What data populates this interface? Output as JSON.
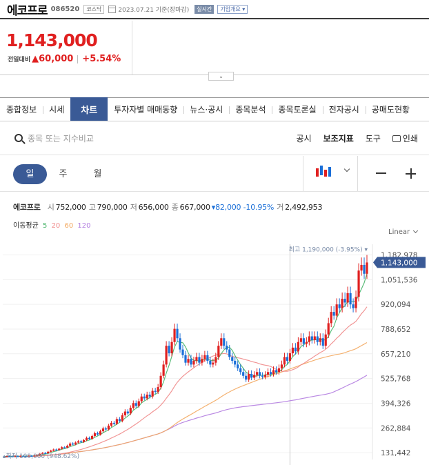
{
  "header": {
    "stock_name": "에코프로",
    "stock_code": "086520",
    "market": "코스닥",
    "date": "2023.07.21 기준(장마감)",
    "live_badge": "실시간",
    "overview_badge": "기업개요 ▾"
  },
  "price": {
    "current": "1,143,000",
    "change_label": "전일대비",
    "change_symbol": "▲",
    "change_amount": "60,000",
    "change_percent": "+5.54%"
  },
  "tabs": [
    {
      "label": "종합정보"
    },
    {
      "label": "시세"
    },
    {
      "label": "차트",
      "active": true
    },
    {
      "label": "투자자별 매매동향"
    },
    {
      "label": "뉴스·공시"
    },
    {
      "label": "종목분석"
    },
    {
      "label": "종목토론실"
    },
    {
      "label": "전자공시"
    },
    {
      "label": "공매도현황"
    }
  ],
  "toolbar": {
    "search_placeholder": "종목 또는 지수비교",
    "links": [
      "공시",
      "보조지표",
      "도구",
      "인쇄"
    ]
  },
  "periods": [
    "일",
    "주",
    "월"
  ],
  "ohlc": {
    "name": "에코프로",
    "open_label": "시",
    "open": "752,000",
    "high_label": "고",
    "high": "790,000",
    "low_label": "저",
    "low": "656,000",
    "close_label": "종",
    "close": "667,000",
    "change": "▾82,000 -10.95%",
    "volume_label": "거",
    "volume": "2,492,953"
  },
  "moving_average": {
    "label": "이동평균",
    "periods": [
      "5",
      "20",
      "60",
      "120"
    ],
    "colors": [
      "#49b56a",
      "#f08a8a",
      "#f3a960",
      "#b27ce0"
    ]
  },
  "colors": {
    "accent": "#3a5a96",
    "up": "#e02020",
    "down": "#1a6fd8"
  },
  "chart_data": {
    "type": "candlestick",
    "scale": "Linear",
    "y_ticks": [
      "1,182,978",
      "1,051,536",
      "920,094",
      "788,652",
      "657,210",
      "525,768",
      "394,326",
      "262,884",
      "131,442"
    ],
    "y_tick_values": [
      1182978,
      1051536,
      920094,
      788652,
      657210,
      525768,
      394326,
      262884,
      131442
    ],
    "y_range": [
      95000,
      1240000
    ],
    "current_label": "1,143,000",
    "current_value": 1143000,
    "max_annotation": "최고 1,190,000 (-3.95%)",
    "max_value": 1190000,
    "min_annotation": "최저 109,000 (948.62%)",
    "min_value": 109000,
    "candles": [
      {
        "o": 112000,
        "c": 110000
      },
      {
        "o": 110000,
        "c": 113000
      },
      {
        "o": 113000,
        "c": 112000
      },
      {
        "o": 112000,
        "c": 111000
      },
      {
        "o": 111000,
        "c": 113000
      },
      {
        "o": 113000,
        "c": 112000
      },
      {
        "o": 112000,
        "c": 114000
      },
      {
        "o": 114000,
        "c": 113000
      },
      {
        "o": 113000,
        "c": 112000
      },
      {
        "o": 112000,
        "c": 115000
      },
      {
        "o": 115000,
        "c": 114000
      },
      {
        "o": 114000,
        "c": 116000
      },
      {
        "o": 116000,
        "c": 118000
      },
      {
        "o": 118000,
        "c": 125000
      },
      {
        "o": 125000,
        "c": 130000
      },
      {
        "o": 130000,
        "c": 128000
      },
      {
        "o": 128000,
        "c": 136000
      },
      {
        "o": 136000,
        "c": 142000
      },
      {
        "o": 142000,
        "c": 148000
      },
      {
        "o": 148000,
        "c": 145000
      },
      {
        "o": 145000,
        "c": 152000
      },
      {
        "o": 152000,
        "c": 160000
      },
      {
        "o": 160000,
        "c": 158000
      },
      {
        "o": 158000,
        "c": 168000
      },
      {
        "o": 168000,
        "c": 180000
      },
      {
        "o": 180000,
        "c": 175000
      },
      {
        "o": 175000,
        "c": 185000
      },
      {
        "o": 185000,
        "c": 192000
      },
      {
        "o": 192000,
        "c": 188000
      },
      {
        "o": 188000,
        "c": 198000
      },
      {
        "o": 198000,
        "c": 210000
      },
      {
        "o": 210000,
        "c": 205000
      },
      {
        "o": 205000,
        "c": 220000
      },
      {
        "o": 220000,
        "c": 235000
      },
      {
        "o": 235000,
        "c": 228000
      },
      {
        "o": 228000,
        "c": 245000
      },
      {
        "o": 245000,
        "c": 260000
      },
      {
        "o": 260000,
        "c": 255000
      },
      {
        "o": 255000,
        "c": 275000
      },
      {
        "o": 275000,
        "c": 290000
      },
      {
        "o": 290000,
        "c": 285000
      },
      {
        "o": 285000,
        "c": 310000
      },
      {
        "o": 310000,
        "c": 300000
      },
      {
        "o": 300000,
        "c": 330000
      },
      {
        "o": 330000,
        "c": 350000
      },
      {
        "o": 350000,
        "c": 340000
      },
      {
        "o": 340000,
        "c": 370000
      },
      {
        "o": 370000,
        "c": 395000
      },
      {
        "o": 395000,
        "c": 380000
      },
      {
        "o": 380000,
        "c": 405000
      },
      {
        "o": 405000,
        "c": 430000
      },
      {
        "o": 430000,
        "c": 420000
      },
      {
        "o": 420000,
        "c": 440000
      },
      {
        "o": 440000,
        "c": 430000
      },
      {
        "o": 430000,
        "c": 460000
      },
      {
        "o": 460000,
        "c": 455000
      },
      {
        "o": 455000,
        "c": 480000
      },
      {
        "o": 480000,
        "c": 540000
      },
      {
        "o": 540000,
        "c": 600000
      },
      {
        "o": 600000,
        "c": 700000
      },
      {
        "o": 700000,
        "c": 660000
      },
      {
        "o": 660000,
        "c": 720000
      },
      {
        "o": 720000,
        "c": 790000
      },
      {
        "o": 790000,
        "c": 740000
      },
      {
        "o": 740000,
        "c": 680000
      },
      {
        "o": 680000,
        "c": 650000
      },
      {
        "o": 650000,
        "c": 610000
      },
      {
        "o": 610000,
        "c": 630000
      },
      {
        "o": 630000,
        "c": 600000
      },
      {
        "o": 600000,
        "c": 620000
      },
      {
        "o": 620000,
        "c": 640000
      },
      {
        "o": 640000,
        "c": 610000
      },
      {
        "o": 610000,
        "c": 630000
      },
      {
        "o": 630000,
        "c": 650000
      },
      {
        "o": 650000,
        "c": 620000
      },
      {
        "o": 620000,
        "c": 600000
      },
      {
        "o": 600000,
        "c": 610000
      },
      {
        "o": 610000,
        "c": 640000
      },
      {
        "o": 640000,
        "c": 700000
      },
      {
        "o": 700000,
        "c": 740000
      },
      {
        "o": 740000,
        "c": 700000
      },
      {
        "o": 700000,
        "c": 680000
      },
      {
        "o": 680000,
        "c": 640000
      },
      {
        "o": 640000,
        "c": 620000
      },
      {
        "o": 620000,
        "c": 600000
      },
      {
        "o": 600000,
        "c": 580000
      },
      {
        "o": 580000,
        "c": 560000
      },
      {
        "o": 560000,
        "c": 540000
      },
      {
        "o": 540000,
        "c": 520000
      },
      {
        "o": 520000,
        "c": 550000
      },
      {
        "o": 550000,
        "c": 530000
      },
      {
        "o": 530000,
        "c": 545000
      },
      {
        "o": 545000,
        "c": 560000
      },
      {
        "o": 560000,
        "c": 540000
      },
      {
        "o": 540000,
        "c": 535000
      },
      {
        "o": 535000,
        "c": 545000
      },
      {
        "o": 545000,
        "c": 560000
      },
      {
        "o": 560000,
        "c": 550000
      },
      {
        "o": 550000,
        "c": 570000
      },
      {
        "o": 570000,
        "c": 560000
      },
      {
        "o": 560000,
        "c": 580000
      },
      {
        "o": 580000,
        "c": 600000
      },
      {
        "o": 600000,
        "c": 640000
      },
      {
        "o": 640000,
        "c": 620000
      },
      {
        "o": 620000,
        "c": 660000
      },
      {
        "o": 660000,
        "c": 690000
      },
      {
        "o": 690000,
        "c": 670000
      },
      {
        "o": 670000,
        "c": 720000
      },
      {
        "o": 720000,
        "c": 740000
      },
      {
        "o": 740000,
        "c": 710000
      },
      {
        "o": 710000,
        "c": 720000
      },
      {
        "o": 720000,
        "c": 750000
      },
      {
        "o": 750000,
        "c": 730000
      },
      {
        "o": 730000,
        "c": 750000
      },
      {
        "o": 750000,
        "c": 720000
      },
      {
        "o": 720000,
        "c": 740000
      },
      {
        "o": 740000,
        "c": 700000
      },
      {
        "o": 700000,
        "c": 760000
      },
      {
        "o": 760000,
        "c": 820000
      },
      {
        "o": 820000,
        "c": 880000
      },
      {
        "o": 880000,
        "c": 860000
      },
      {
        "o": 860000,
        "c": 920000
      },
      {
        "o": 920000,
        "c": 900000
      },
      {
        "o": 900000,
        "c": 950000
      },
      {
        "o": 950000,
        "c": 930000
      },
      {
        "o": 930000,
        "c": 980000
      },
      {
        "o": 980000,
        "c": 920000
      },
      {
        "o": 920000,
        "c": 900000
      },
      {
        "o": 900000,
        "c": 960000
      },
      {
        "o": 960000,
        "c": 1100000
      },
      {
        "o": 1100000,
        "c": 1130000
      },
      {
        "o": 1130000,
        "c": 1083000
      },
      {
        "o": 1083000,
        "c": 1143000
      }
    ]
  }
}
